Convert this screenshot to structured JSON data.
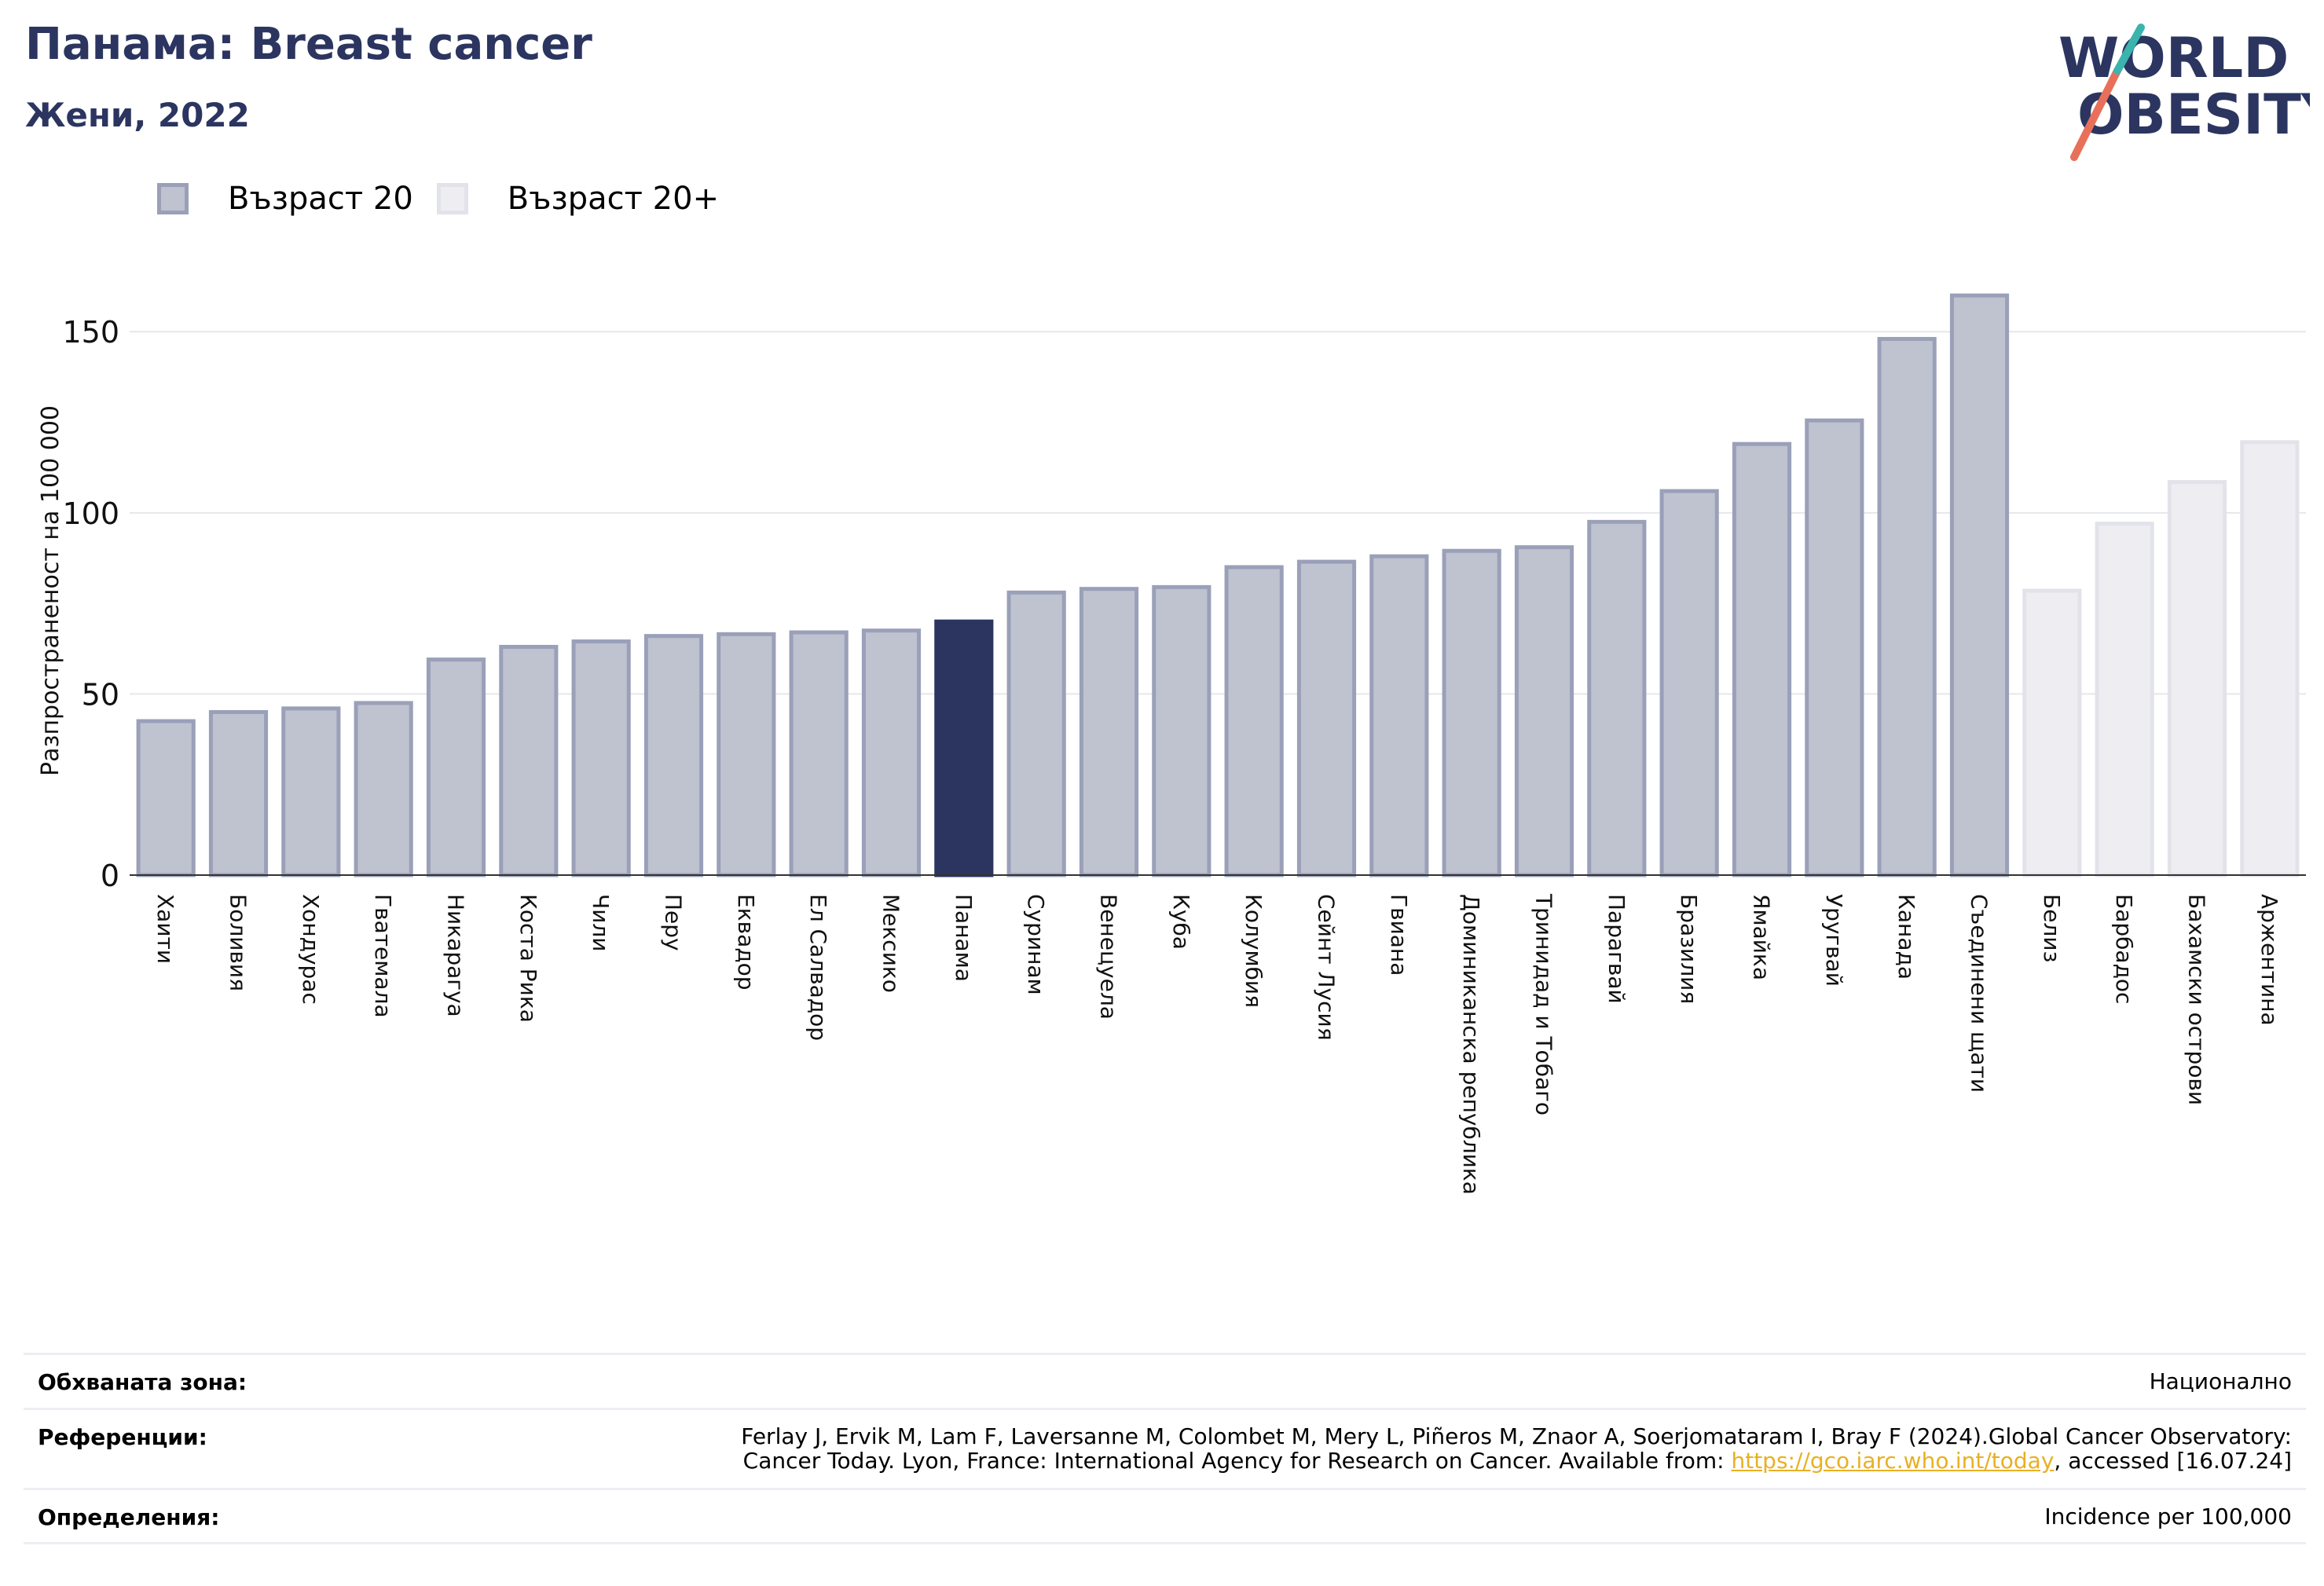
{
  "header": {
    "title": "Панама: Breast cancer",
    "subtitle": "Жени, 2022"
  },
  "logo": {
    "line1": "WORLD",
    "line2": "OBESITY"
  },
  "legend": [
    {
      "label": "Възраст 20",
      "color": "#bfc2cf",
      "border": "#9aa0b8"
    },
    {
      "label": "Възраст 20+",
      "color": "#eeeef2",
      "border": "#e2e3ea"
    }
  ],
  "chart_data": {
    "type": "bar",
    "ylabel": "Разпространеност  на 100 000",
    "ylim": [
      0,
      170
    ],
    "yticks": [
      0,
      50,
      100,
      150
    ],
    "highlight": "Панама",
    "categories": [
      "Хаити",
      "Боливия",
      "Хондурас",
      "Гватемала",
      "Никарагуа",
      "Коста Рика",
      "Чили",
      "Перу",
      "Еквадор",
      "Ел Салвадор",
      "Мексико",
      "Панама",
      "Суринам",
      "Венецуела",
      "Куба",
      "Колумбия",
      "Сейнт Лусия",
      "Гвиана",
      "Доминиканска република",
      "Тринидад и Тобаго",
      "Парагвай",
      "Бразилия",
      "Ямайка",
      "Уругвай",
      "Канада",
      "Съединени щати",
      "Белиз",
      "Барбадос",
      "Бахамски острови",
      "Аржентина"
    ],
    "values": [
      42.5,
      45.0,
      46.0,
      47.5,
      59.5,
      63.0,
      64.5,
      66.0,
      66.5,
      67.0,
      67.5,
      70.0,
      78.0,
      79.0,
      79.5,
      85.0,
      86.5,
      88.0,
      89.5,
      90.5,
      97.5,
      106.0,
      119.0,
      125.5,
      148.0,
      160.0,
      78.5,
      97.0,
      108.5,
      119.5
    ],
    "groups": [
      "Възраст 20",
      "Възраст 20",
      "Възраст 20",
      "Възраст 20",
      "Възраст 20",
      "Възраст 20",
      "Възраст 20",
      "Възраст 20",
      "Възраст 20",
      "Възраст 20",
      "Възраст 20",
      "Възраст 20",
      "Възраст 20",
      "Възраст 20",
      "Възраст 20",
      "Възраст 20",
      "Възраст 20",
      "Възраст 20",
      "Възраст 20",
      "Възраст 20",
      "Възраст 20",
      "Възраст 20",
      "Възраст 20",
      "Възраст 20",
      "Възраст 20",
      "Възраст 20",
      "Възраст 20+",
      "Възраст 20+",
      "Възраст 20+",
      "Възраст 20+"
    ],
    "colors": {
      "Възраст 20": "#bfc2cf",
      "Възраст 20+": "#eeeef2",
      "highlight": "#2b3560"
    }
  },
  "footer": {
    "area_label": "Обхваната зона:",
    "area_value": "Национално",
    "ref_label": "Референции:",
    "ref_line1": "Ferlay J, Ervik M, Lam F, Laversanne M, Colombet M, Mery L, Piñeros M, Znaor A, Soerjomataram I, Bray F (2024).Global Cancer Observatory:",
    "ref_line2_pre": "Cancer Today. Lyon, France: International Agency for Research on Cancer. Available from: ",
    "ref_link": "https://gco.iarc.who.int/today",
    "ref_line2_post": ", accessed [16.07.24]",
    "def_label": "Определения:",
    "def_value": "Incidence per 100,000"
  }
}
